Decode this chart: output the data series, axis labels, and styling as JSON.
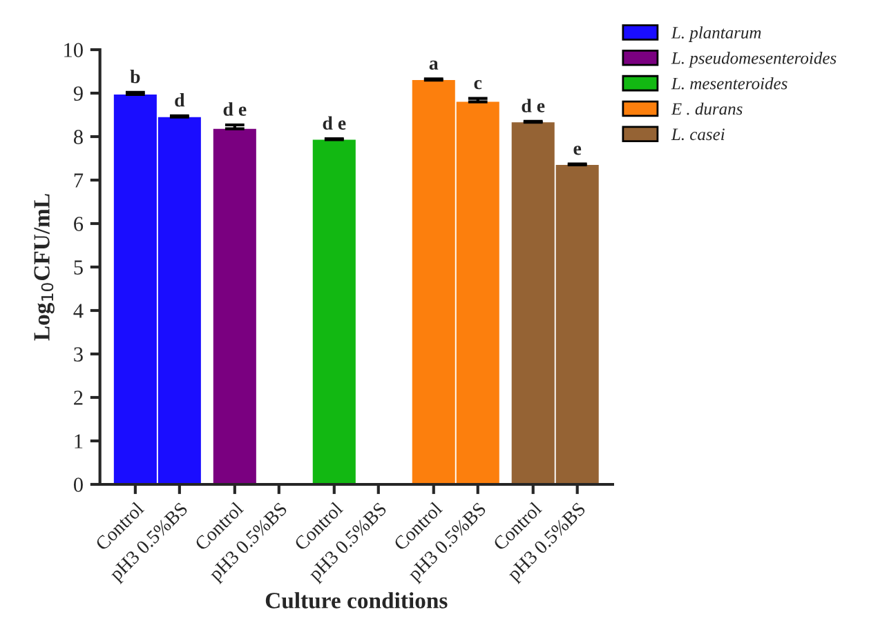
{
  "chart_data": {
    "type": "bar",
    "xlabel": "Culture conditions",
    "ylabel": "Log$_{10}$CFU/mL",
    "categories": [
      "Control",
      "pH3 0.5%BS",
      "Control",
      "pH3 0.5%BS",
      "Control",
      "pH3 0.5%BS",
      "Control",
      "pH3 0.5%BS",
      "Control",
      "pH3 0.5%BS"
    ],
    "series": [
      {
        "name": "L. plantarum",
        "color": "#1a0dff",
        "values": [
          8.97,
          8.45,
          null,
          null,
          null,
          null,
          null,
          null,
          null,
          null
        ],
        "errors": [
          0.05,
          0.03,
          null,
          null,
          null,
          null,
          null,
          null,
          null,
          null
        ],
        "value_labels": [
          "b",
          "d",
          null,
          null,
          null,
          null,
          null,
          null,
          null,
          null
        ]
      },
      {
        "name": "L. pseudomesenteroides",
        "color": "#7a0080",
        "values": [
          null,
          null,
          8.18,
          null,
          null,
          null,
          null,
          null,
          null,
          null
        ],
        "errors": [
          null,
          null,
          0.09,
          null,
          null,
          null,
          null,
          null,
          null,
          null
        ],
        "value_labels": [
          null,
          null,
          "d e",
          null,
          null,
          null,
          null,
          null,
          null,
          null
        ]
      },
      {
        "name": "L. mesenteroides",
        "color": "#12b812",
        "values": [
          null,
          null,
          null,
          null,
          7.93,
          null,
          null,
          null,
          null,
          null
        ],
        "errors": [
          null,
          null,
          null,
          null,
          0.02,
          null,
          null,
          null,
          null,
          null
        ],
        "value_labels": [
          null,
          null,
          null,
          null,
          "d e",
          null,
          null,
          null,
          null,
          null
        ]
      },
      {
        "name": "E . durans",
        "color": "#fc7f0d",
        "values": [
          null,
          null,
          null,
          null,
          null,
          null,
          9.3,
          8.8,
          null,
          null
        ],
        "errors": [
          null,
          null,
          null,
          null,
          null,
          null,
          0.03,
          0.08,
          null,
          null
        ],
        "value_labels": [
          null,
          null,
          null,
          null,
          null,
          null,
          "a",
          "c",
          null,
          null
        ]
      },
      {
        "name": "L. casei",
        "color": "#956334",
        "values": [
          null,
          null,
          null,
          null,
          null,
          null,
          null,
          null,
          8.33,
          7.35
        ],
        "errors": [
          null,
          null,
          null,
          null,
          null,
          null,
          null,
          null,
          0.02,
          0.02
        ],
        "value_labels": [
          null,
          null,
          null,
          null,
          null,
          null,
          null,
          null,
          "d e",
          "e"
        ]
      }
    ],
    "ylim": [
      0,
      10
    ],
    "yticks": [
      0,
      1,
      2,
      3,
      4,
      5,
      6,
      7,
      8,
      9,
      10
    ],
    "grid": false,
    "legend": "top right"
  }
}
